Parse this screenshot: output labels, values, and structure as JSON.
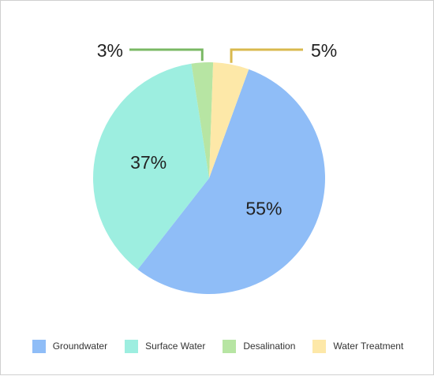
{
  "chart_data": {
    "type": "pie",
    "categories": [
      "Groundwater",
      "Surface Water",
      "Desalination",
      "Water Treatment"
    ],
    "values": [
      55,
      37,
      3,
      5
    ],
    "labels": [
      "55%",
      "37%",
      "3%",
      "5%"
    ],
    "colors": [
      "#8fbdf7",
      "#9deee0",
      "#b7e5a3",
      "#fde8a8"
    ],
    "leader_colors": [
      "",
      "",
      "#7ab864",
      "#d9b94e"
    ],
    "legend_position": "bottom"
  }
}
